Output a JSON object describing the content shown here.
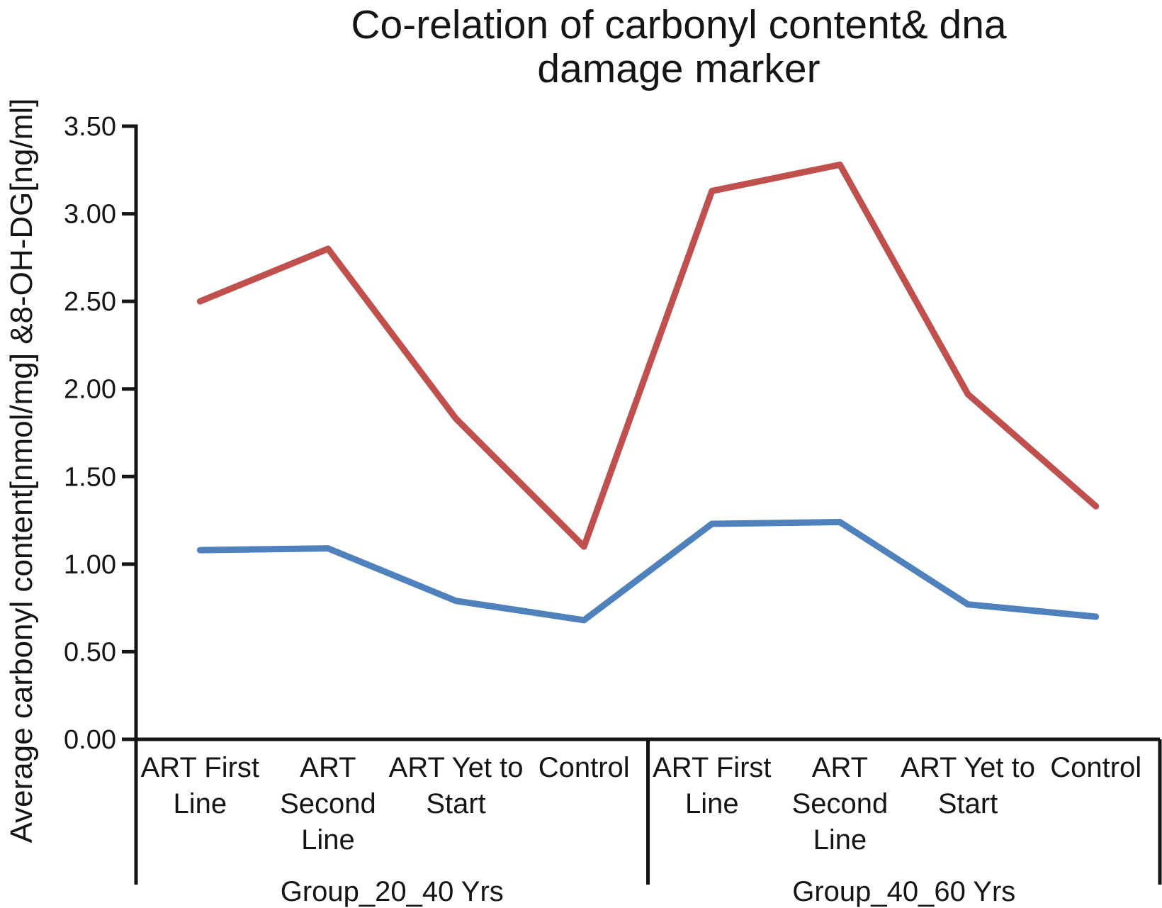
{
  "figure": {
    "title_line1": "Co-relation of carbonyl content& dna",
    "title_line2": "damage marker",
    "ylabel": "Average carbonyl content[nmol/mg] &8-OH-DG[ng/ml]"
  },
  "chart_data": {
    "type": "line",
    "title": "Co-relation of carbonyl content& dna damage marker",
    "xlabel": "",
    "ylabel": "Average carbonyl content[nmol/mg] &8-OH-DG[ng/ml]",
    "ylim": [
      0.0,
      3.5
    ],
    "ytick_interval": 0.5,
    "ytick_labels": [
      "0.00",
      "0.50",
      "1.00",
      "1.50",
      "2.00",
      "2.50",
      "3.00",
      "3.50"
    ],
    "grid": false,
    "legend": false,
    "axis_color": "#151515",
    "groups": [
      {
        "label": "Group_20_40 Yrs",
        "categories": [
          "ART First Line",
          "ART Second Line",
          "ART Yet to Start",
          "Control"
        ]
      },
      {
        "label": "Group_40_60 Yrs",
        "categories": [
          "ART First Line",
          "ART Second Line",
          "ART Yet to Start",
          "Control"
        ]
      }
    ],
    "categories": [
      "ART First Line",
      "ART Second Line",
      "ART Yet to Start",
      "Control",
      "ART First Line",
      "ART Second Line",
      "ART Yet to Start",
      "Control"
    ],
    "category_wrap_lines": [
      [
        "ART First",
        "Line"
      ],
      [
        "ART",
        "Second",
        "Line"
      ],
      [
        "ART Yet to",
        "Start"
      ],
      [
        "Control"
      ]
    ],
    "series": [
      {
        "name": "red-line",
        "color": "#C0504D",
        "values": [
          2.5,
          2.8,
          1.83,
          1.1,
          3.13,
          3.28,
          1.97,
          1.33
        ]
      },
      {
        "name": "blue-line",
        "color": "#4F81BD",
        "values": [
          1.08,
          1.09,
          0.79,
          0.68,
          1.23,
          1.24,
          0.77,
          0.7
        ]
      }
    ]
  }
}
